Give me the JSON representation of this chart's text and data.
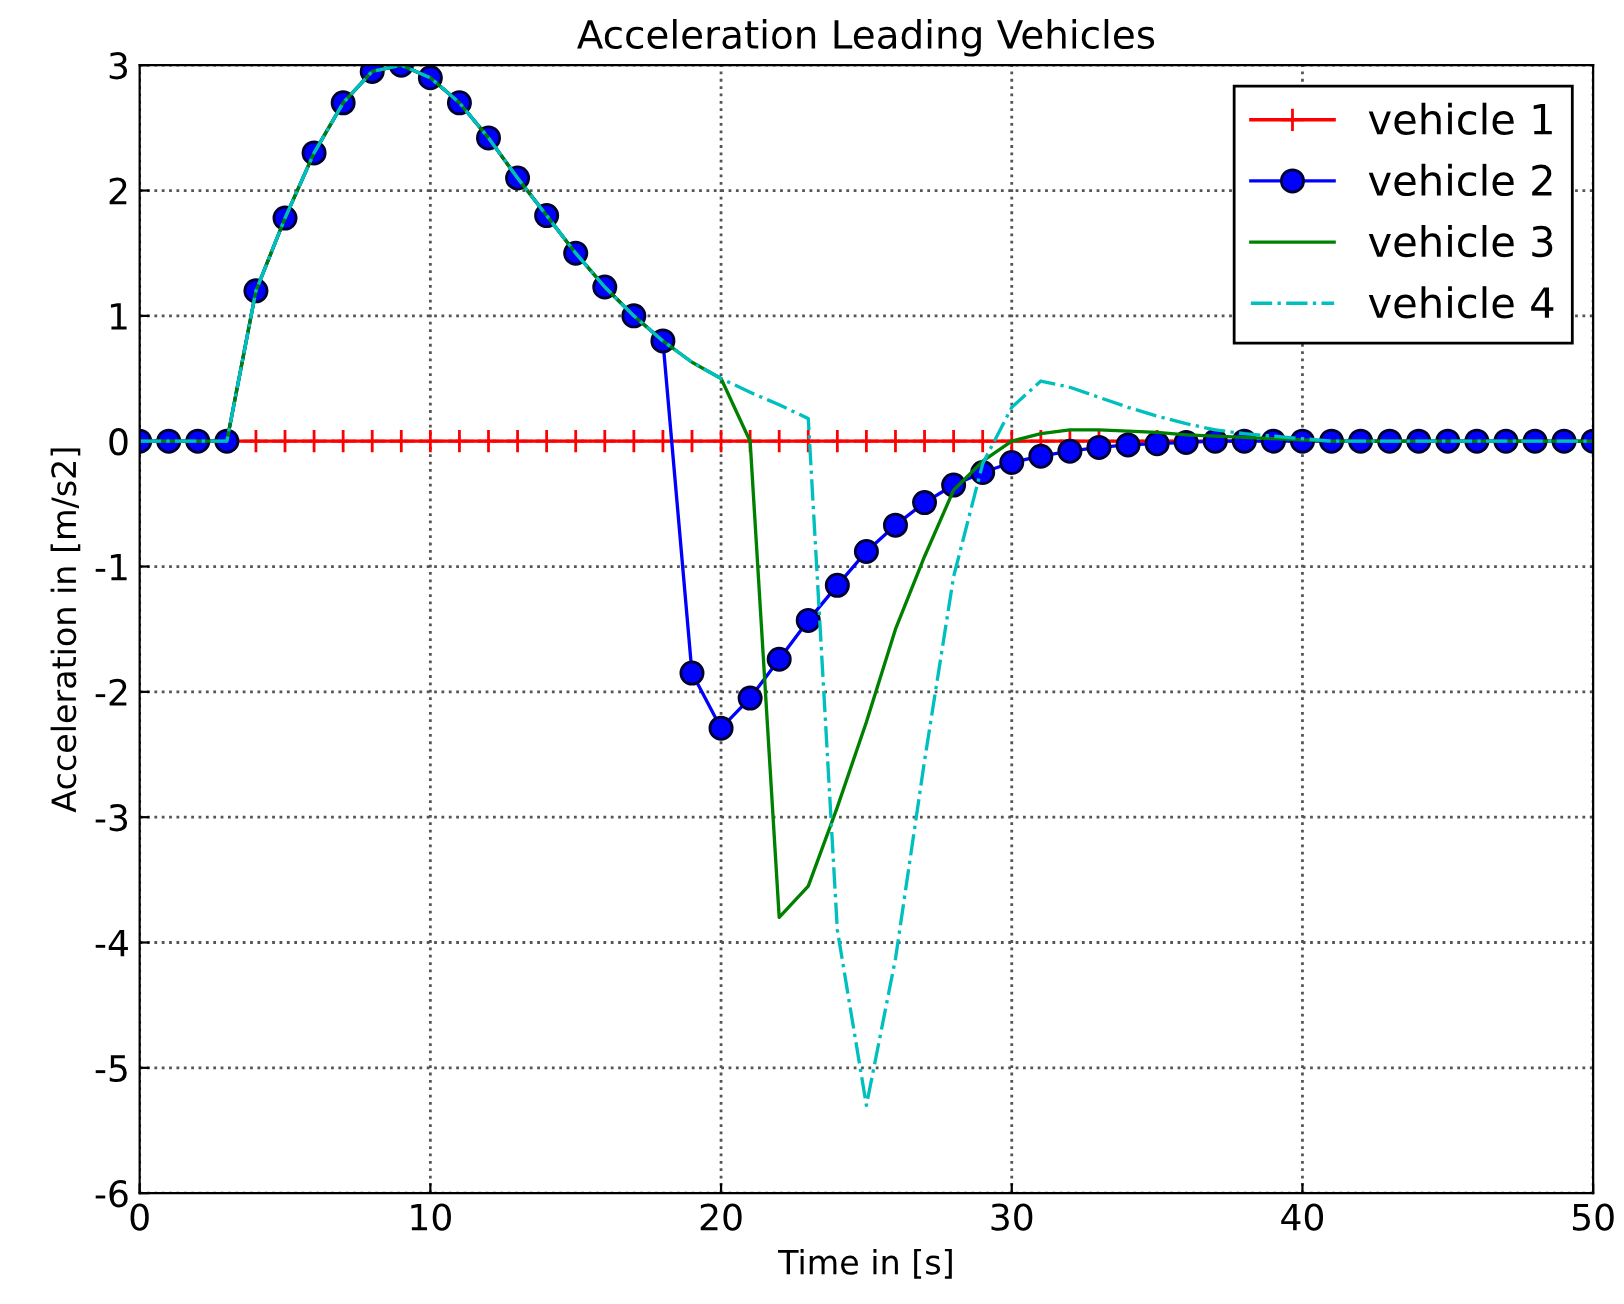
{
  "chart_data": {
    "type": "line",
    "title": "Acceleration Leading Vehicles",
    "xlabel": "Time in [s]",
    "ylabel": "Acceleration in [m/s2]",
    "x": [
      0,
      1,
      2,
      3,
      4,
      5,
      6,
      7,
      8,
      9,
      10,
      11,
      12,
      13,
      14,
      15,
      16,
      17,
      18,
      19,
      20,
      21,
      22,
      23,
      24,
      25,
      26,
      27,
      28,
      29,
      30,
      31,
      32,
      33,
      34,
      35,
      36,
      37,
      38,
      39,
      40,
      41,
      42,
      43,
      44,
      45,
      46,
      47,
      48,
      49,
      50
    ],
    "series": [
      {
        "name": "vehicle 1",
        "color": "#ff0000",
        "marker": "cross",
        "line_style": "solid",
        "values": [
          null,
          null,
          0,
          0,
          0,
          0,
          0,
          0,
          0,
          0,
          0,
          0,
          0,
          0,
          0,
          0,
          0,
          0,
          0,
          0,
          0,
          0,
          0,
          0,
          0,
          0,
          0,
          0,
          0,
          0,
          0,
          0,
          0,
          0,
          0,
          0,
          0,
          0,
          0,
          null,
          null,
          null,
          null,
          null,
          null,
          null,
          null,
          null,
          null,
          null,
          null
        ]
      },
      {
        "name": "vehicle 2",
        "color": "#0000ff",
        "marker": "circle",
        "line_style": "solid",
        "values": [
          0,
          0,
          0,
          0,
          1.2,
          1.78,
          2.3,
          2.7,
          2.95,
          3.0,
          2.9,
          2.7,
          2.42,
          2.1,
          1.8,
          1.5,
          1.23,
          1.0,
          0.8,
          -1.85,
          -2.29,
          -2.05,
          -1.74,
          -1.43,
          -1.15,
          -0.88,
          -0.67,
          -0.49,
          -0.35,
          -0.25,
          -0.17,
          -0.12,
          -0.08,
          -0.05,
          -0.03,
          -0.02,
          -0.01,
          0,
          0,
          0,
          0,
          0,
          0,
          0,
          0,
          0,
          0,
          0,
          0,
          0,
          0
        ]
      },
      {
        "name": "vehicle 3",
        "color": "#008000",
        "marker": "none",
        "line_style": "solid",
        "values": [
          0,
          0,
          0,
          0,
          1.2,
          1.78,
          2.3,
          2.7,
          2.95,
          3.0,
          2.9,
          2.7,
          2.42,
          2.1,
          1.8,
          1.5,
          1.23,
          1.0,
          0.8,
          0.63,
          0.5,
          0,
          -3.8,
          -3.55,
          -2.92,
          -2.24,
          -1.5,
          -0.92,
          -0.39,
          -0.16,
          0,
          0.06,
          0.09,
          0.09,
          0.08,
          0.07,
          0.05,
          0.04,
          0.03,
          0.02,
          0.01,
          0,
          0,
          0,
          0,
          0,
          0,
          0,
          0,
          0,
          0
        ]
      },
      {
        "name": "vehicle 4",
        "color": "#00bfbf",
        "marker": "none",
        "line_style": "dashdot",
        "values": [
          0,
          0,
          0,
          0,
          1.2,
          1.78,
          2.3,
          2.7,
          2.95,
          3.0,
          2.9,
          2.7,
          2.42,
          2.1,
          1.8,
          1.5,
          1.23,
          1.0,
          0.8,
          0.63,
          0.5,
          0.39,
          0.29,
          0.18,
          -3.9,
          -5.3,
          -4.13,
          -2.55,
          -1.08,
          -0.18,
          0.27,
          0.48,
          0.43,
          0.35,
          0.27,
          0.2,
          0.14,
          0.09,
          0.06,
          0.04,
          0.02,
          0,
          0,
          0,
          0,
          0,
          0,
          0,
          0,
          0,
          0
        ]
      }
    ],
    "xlim": [
      0,
      50
    ],
    "xticks": [
      0,
      10,
      20,
      30,
      40,
      50
    ],
    "ylim": [
      -6,
      3
    ],
    "yticks": [
      -6,
      -5,
      -4,
      -3,
      -2,
      -1,
      0,
      1,
      2,
      3
    ],
    "grid": true,
    "legend": "top right"
  }
}
